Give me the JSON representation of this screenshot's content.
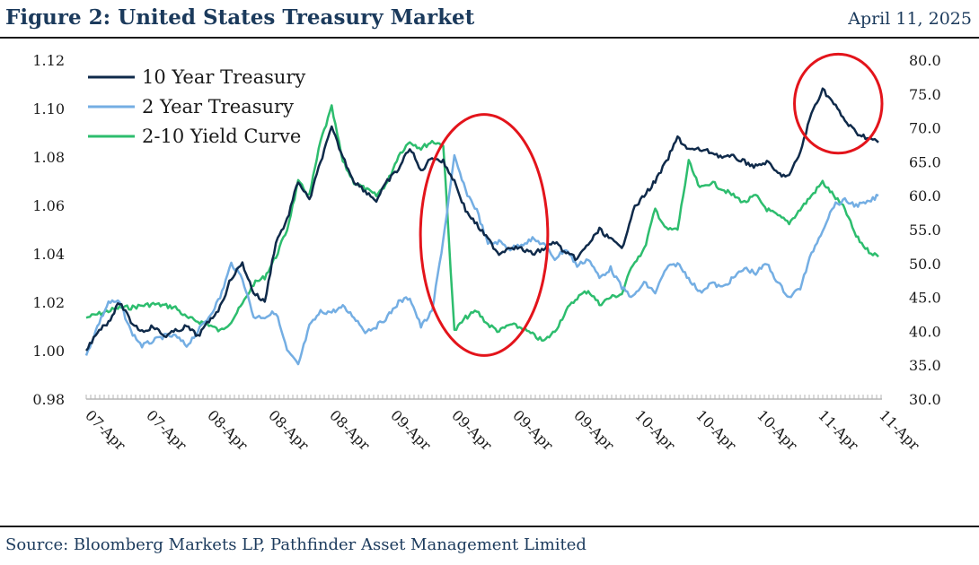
{
  "header": {
    "title": "Figure 2: United States Treasury Market",
    "date": "April 11, 2025"
  },
  "footer": {
    "source": "Source: Bloomberg Markets LP, Pathfinder Asset Management Limited"
  },
  "colors": {
    "ten_year": "#0f2a4a",
    "two_year": "#74aee3",
    "curve": "#2dbd6e",
    "highlight": "#e3141b"
  },
  "chart_data": {
    "type": "line",
    "title": "",
    "xlabel": "",
    "ylabel": "",
    "x_tick_labels": [
      "07-Apr",
      "07-Apr",
      "08-Apr",
      "08-Apr",
      "08-Apr",
      "09-Apr",
      "09-Apr",
      "09-Apr",
      "09-Apr",
      "10-Apr",
      "10-Apr",
      "10-Apr",
      "11-Apr",
      "11-Apr"
    ],
    "y_left": {
      "ticks": [
        "0.98",
        "1.00",
        "1.02",
        "1.04",
        "1.06",
        "1.08",
        "1.10",
        "1.12"
      ],
      "range": [
        0.98,
        1.12
      ]
    },
    "y_right": {
      "ticks": [
        "30.0",
        "35.0",
        "40.0",
        "45.0",
        "50.0",
        "55.0",
        "60.0",
        "65.0",
        "70.0",
        "75.0",
        "80.0"
      ],
      "range": [
        30,
        80
      ]
    },
    "grid": false,
    "legend_position": "top-left",
    "series": [
      {
        "name": "10 Year Treasury",
        "axis": "left",
        "values": [
          1.0,
          1.008,
          1.012,
          1.02,
          1.012,
          1.008,
          1.01,
          1.006,
          1.008,
          1.01,
          1.006,
          1.012,
          1.018,
          1.03,
          1.036,
          1.024,
          1.02,
          1.045,
          1.054,
          1.07,
          1.062,
          1.078,
          1.092,
          1.08,
          1.07,
          1.066,
          1.062,
          1.07,
          1.075,
          1.084,
          1.074,
          1.08,
          1.078,
          1.07,
          1.058,
          1.052,
          1.046,
          1.04,
          1.043,
          1.042,
          1.04,
          1.042,
          1.045,
          1.04,
          1.038,
          1.044,
          1.05,
          1.046,
          1.042,
          1.058,
          1.064,
          1.07,
          1.078,
          1.088,
          1.083,
          1.083,
          1.082,
          1.08,
          1.08,
          1.078,
          1.076,
          1.078,
          1.073,
          1.072,
          1.082,
          1.098,
          1.108,
          1.102,
          1.095,
          1.09,
          1.088,
          1.086
        ]
      },
      {
        "name": "2 Year Treasury",
        "axis": "left",
        "values": [
          0.998,
          1.01,
          1.02,
          1.02,
          1.008,
          1.002,
          1.004,
          1.006,
          1.006,
          1.002,
          1.008,
          1.014,
          1.022,
          1.036,
          1.03,
          1.014,
          1.014,
          1.016,
          1.0,
          0.994,
          1.01,
          1.016,
          1.016,
          1.018,
          1.014,
          1.008,
          1.01,
          1.014,
          1.02,
          1.022,
          1.01,
          1.016,
          1.046,
          1.08,
          1.066,
          1.058,
          1.044,
          1.045,
          1.042,
          1.044,
          1.046,
          1.044,
          1.038,
          1.042,
          1.035,
          1.038,
          1.03,
          1.034,
          1.026,
          1.022,
          1.028,
          1.024,
          1.034,
          1.036,
          1.03,
          1.024,
          1.028,
          1.026,
          1.03,
          1.034,
          1.032,
          1.036,
          1.028,
          1.022,
          1.026,
          1.04,
          1.05,
          1.06,
          1.062,
          1.06,
          1.061,
          1.064
        ]
      },
      {
        "name": "2-10 Yield Curve",
        "axis": "right",
        "values": [
          42.0,
          42.5,
          43.0,
          43.5,
          43.5,
          43.8,
          44.0,
          43.8,
          43.5,
          42.0,
          41.5,
          41.0,
          40.0,
          41.5,
          44.0,
          47.0,
          48.0,
          51.0,
          55.0,
          62.0,
          60.0,
          68.0,
          73.0,
          65.0,
          62.0,
          61.0,
          60.0,
          62.0,
          66.0,
          68.0,
          67.0,
          68.0,
          67.5,
          40.0,
          42.0,
          43.0,
          41.0,
          40.0,
          41.0,
          40.5,
          39.5,
          38.5,
          40.0,
          43.0,
          45.0,
          46.0,
          44.0,
          45.0,
          45.5,
          50.0,
          52.0,
          58.0,
          55.0,
          55.0,
          65.0,
          61.0,
          62.0,
          61.0,
          60.0,
          59.0,
          60.0,
          58.0,
          57.0,
          56.0,
          58.0,
          60.0,
          62.0,
          60.0,
          58.0,
          54.0,
          52.0,
          51.0
        ]
      }
    ],
    "annotations": [
      {
        "type": "ellipse",
        "x_from_pct": 42,
        "x_to_pct": 58,
        "y_from": 1.048,
        "y_to": 1.092,
        "note": "highlight"
      },
      {
        "type": "ellipse",
        "x_from_pct": 89,
        "x_to_pct": 100,
        "y_from": 1.086,
        "y_to": 1.118,
        "note": "highlight"
      }
    ]
  }
}
